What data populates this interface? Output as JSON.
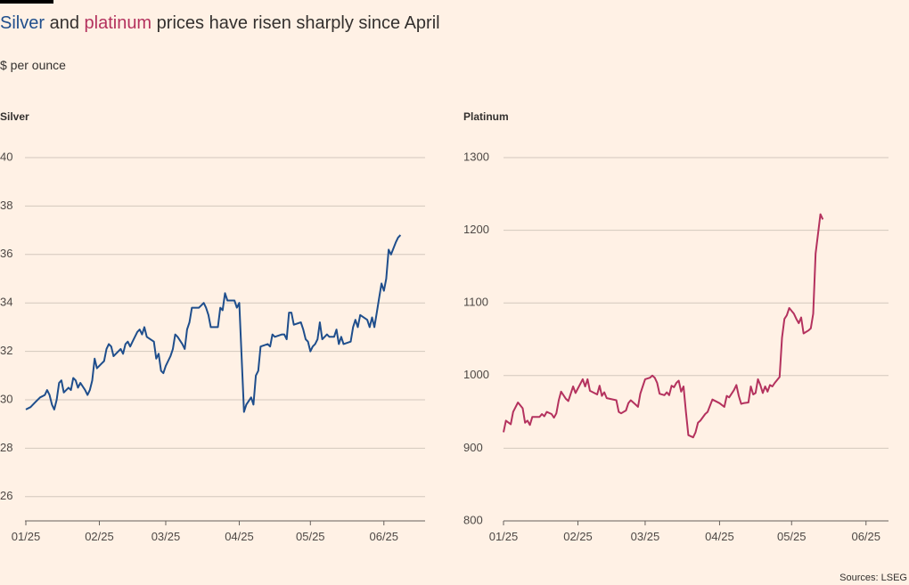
{
  "header": {
    "title_part1": "Silver",
    "title_part2": " and ",
    "title_part3": "platinum",
    "title_part4": " prices have risen sharply since April",
    "subtitle": "$ per ounce",
    "source": "Sources: LSEG"
  },
  "colors": {
    "silver": "#1f4e8c",
    "platinum": "#b4325e"
  },
  "chart_data": [
    {
      "type": "line",
      "panel_label": "Silver",
      "ylim": [
        25,
        40
      ],
      "yticks": [
        26,
        28,
        30,
        32,
        34,
        36,
        38,
        40
      ],
      "xticks": [
        {
          "label": "01/25",
          "t": 0
        },
        {
          "label": "02/25",
          "t": 31
        },
        {
          "label": "03/25",
          "t": 59
        },
        {
          "label": "04/25",
          "t": 90
        },
        {
          "label": "05/25",
          "t": 120
        },
        {
          "label": "06/25",
          "t": 151
        }
      ],
      "xmax": 168,
      "series": [
        {
          "color": "#1f4e8c",
          "points": [
            [
              0,
              29.6
            ],
            [
              2,
              29.7
            ],
            [
              4,
              29.9
            ],
            [
              6,
              30.1
            ],
            [
              8,
              30.2
            ],
            [
              9,
              30.4
            ],
            [
              10,
              30.2
            ],
            [
              11,
              29.8
            ],
            [
              12,
              29.6
            ],
            [
              13,
              30.0
            ],
            [
              14,
              30.7
            ],
            [
              15,
              30.8
            ],
            [
              16,
              30.3
            ],
            [
              18,
              30.5
            ],
            [
              19,
              30.4
            ],
            [
              20,
              30.9
            ],
            [
              21,
              30.8
            ],
            [
              22,
              30.5
            ],
            [
              23,
              30.7
            ],
            [
              25,
              30.4
            ],
            [
              26,
              30.2
            ],
            [
              27,
              30.4
            ],
            [
              28,
              30.8
            ],
            [
              29,
              31.7
            ],
            [
              30,
              31.3
            ],
            [
              32,
              31.5
            ],
            [
              33,
              31.6
            ],
            [
              34,
              32.1
            ],
            [
              35,
              32.3
            ],
            [
              36,
              32.2
            ],
            [
              37,
              31.8
            ],
            [
              39,
              32.0
            ],
            [
              40,
              32.1
            ],
            [
              41,
              31.9
            ],
            [
              42,
              32.3
            ],
            [
              43,
              32.4
            ],
            [
              44,
              32.2
            ],
            [
              45,
              32.4
            ],
            [
              47,
              32.8
            ],
            [
              48,
              32.9
            ],
            [
              49,
              32.7
            ],
            [
              50,
              33.0
            ],
            [
              51,
              32.6
            ],
            [
              54,
              32.4
            ],
            [
              55,
              31.7
            ],
            [
              56,
              31.9
            ],
            [
              57,
              31.2
            ],
            [
              58,
              31.1
            ],
            [
              59,
              31.4
            ],
            [
              61,
              31.8
            ],
            [
              62,
              32.1
            ],
            [
              63,
              32.7
            ],
            [
              64,
              32.6
            ],
            [
              66,
              32.3
            ],
            [
              67,
              32.1
            ],
            [
              68,
              32.9
            ],
            [
              69,
              33.2
            ],
            [
              70,
              33.8
            ],
            [
              73,
              33.8
            ],
            [
              74,
              33.9
            ],
            [
              75,
              34.0
            ],
            [
              76,
              33.8
            ],
            [
              77,
              33.5
            ],
            [
              78,
              33.0
            ],
            [
              81,
              33.0
            ],
            [
              82,
              33.8
            ],
            [
              83,
              33.7
            ],
            [
              84,
              34.4
            ],
            [
              85,
              34.1
            ],
            [
              88,
              34.1
            ],
            [
              89,
              33.8
            ],
            [
              90,
              34.0
            ],
            [
              92,
              29.5
            ],
            [
              93,
              29.8
            ],
            [
              95,
              30.1
            ],
            [
              96,
              29.8
            ],
            [
              97,
              31.0
            ],
            [
              98,
              31.2
            ],
            [
              99,
              32.2
            ],
            [
              102,
              32.3
            ],
            [
              103,
              32.2
            ],
            [
              104,
              32.7
            ],
            [
              105,
              32.6
            ],
            [
              108,
              32.7
            ],
            [
              109,
              32.7
            ],
            [
              110,
              32.5
            ],
            [
              111,
              33.6
            ],
            [
              112,
              33.6
            ],
            [
              113,
              33.1
            ],
            [
              116,
              33.2
            ],
            [
              117,
              32.9
            ],
            [
              118,
              32.5
            ],
            [
              119,
              32.4
            ],
            [
              120,
              32.0
            ],
            [
              121,
              32.2
            ],
            [
              122,
              32.3
            ],
            [
              123,
              32.5
            ],
            [
              124,
              33.2
            ],
            [
              125,
              32.5
            ],
            [
              126,
              32.6
            ],
            [
              127,
              32.7
            ],
            [
              128,
              32.6
            ],
            [
              130,
              32.6
            ],
            [
              131,
              32.9
            ],
            [
              132,
              32.3
            ],
            [
              133,
              32.6
            ],
            [
              134,
              32.3
            ],
            [
              137,
              32.4
            ],
            [
              138,
              33.0
            ],
            [
              139,
              33.3
            ],
            [
              140,
              33.0
            ],
            [
              141,
              33.5
            ],
            [
              144,
              33.3
            ],
            [
              145,
              33.0
            ],
            [
              146,
              33.4
            ],
            [
              147,
              33.0
            ],
            [
              148,
              33.6
            ],
            [
              149,
              34.2
            ],
            [
              150,
              34.8
            ],
            [
              151,
              34.5
            ],
            [
              152,
              35.0
            ],
            [
              153,
              36.2
            ],
            [
              154,
              36.0
            ],
            [
              156,
              36.5
            ],
            [
              157,
              36.7
            ],
            [
              158,
              36.8
            ]
          ]
        }
      ]
    },
    {
      "type": "line",
      "panel_label": "Platinum",
      "ylim": [
        800,
        1300
      ],
      "yticks": [
        800,
        900,
        1000,
        1100,
        1200,
        1300
      ],
      "xticks": [
        {
          "label": "01/25",
          "t": 0
        },
        {
          "label": "02/25",
          "t": 31
        },
        {
          "label": "03/25",
          "t": 59
        },
        {
          "label": "04/25",
          "t": 90
        },
        {
          "label": "05/25",
          "t": 120
        },
        {
          "label": "06/25",
          "t": 151
        }
      ],
      "xmax": 160,
      "series": [
        {
          "color": "#b4325e",
          "points": [
            [
              0,
              922
            ],
            [
              1,
              938
            ],
            [
              3,
              933
            ],
            [
              4,
              950
            ],
            [
              6,
              963
            ],
            [
              8,
              955
            ],
            [
              9,
              935
            ],
            [
              10,
              938
            ],
            [
              11,
              932
            ],
            [
              12,
              943
            ],
            [
              15,
              943
            ],
            [
              16,
              947
            ],
            [
              17,
              944
            ],
            [
              18,
              950
            ],
            [
              20,
              947
            ],
            [
              21,
              942
            ],
            [
              22,
              948
            ],
            [
              23,
              966
            ],
            [
              24,
              978
            ],
            [
              26,
              968
            ],
            [
              27,
              965
            ],
            [
              29,
              985
            ],
            [
              30,
              976
            ],
            [
              33,
              995
            ],
            [
              34,
              985
            ],
            [
              35,
              995
            ],
            [
              36,
              979
            ],
            [
              39,
              974
            ],
            [
              40,
              986
            ],
            [
              41,
              972
            ],
            [
              42,
              977
            ],
            [
              43,
              969
            ],
            [
              47,
              966
            ],
            [
              48,
              950
            ],
            [
              49,
              948
            ],
            [
              51,
              952
            ],
            [
              52,
              962
            ],
            [
              53,
              966
            ],
            [
              55,
              960
            ],
            [
              56,
              957
            ],
            [
              57,
              975
            ],
            [
              58,
              985
            ],
            [
              59,
              995
            ],
            [
              61,
              997
            ],
            [
              62,
              1000
            ],
            [
              63,
              997
            ],
            [
              64,
              990
            ],
            [
              65,
              975
            ],
            [
              67,
              973
            ],
            [
              68,
              977
            ],
            [
              69,
              973
            ],
            [
              70,
              986
            ],
            [
              71,
              984
            ],
            [
              72,
              990
            ],
            [
              73,
              993
            ],
            [
              74,
              978
            ],
            [
              75,
              985
            ],
            [
              76,
              950
            ],
            [
              77,
              918
            ],
            [
              79,
              915
            ],
            [
              80,
              922
            ],
            [
              81,
              935
            ],
            [
              82,
              938
            ],
            [
              84,
              947
            ],
            [
              85,
              950
            ],
            [
              87,
              967
            ],
            [
              90,
              962
            ],
            [
              92,
              957
            ],
            [
              93,
              972
            ],
            [
              94,
              970
            ],
            [
              96,
              980
            ],
            [
              97,
              987
            ],
            [
              98,
              972
            ],
            [
              99,
              961
            ],
            [
              100,
              962
            ],
            [
              102,
              963
            ],
            [
              103,
              985
            ],
            [
              104,
              974
            ],
            [
              105,
              976
            ],
            [
              106,
              995
            ],
            [
              107,
              987
            ],
            [
              108,
              976
            ],
            [
              109,
              985
            ],
            [
              110,
              978
            ],
            [
              111,
              987
            ],
            [
              112,
              985
            ],
            [
              113,
              990
            ],
            [
              115,
              998
            ],
            [
              116,
              1052
            ],
            [
              117,
              1078
            ],
            [
              118,
              1083
            ],
            [
              119,
              1093
            ],
            [
              121,
              1085
            ],
            [
              122,
              1078
            ],
            [
              123,
              1072
            ],
            [
              124,
              1080
            ],
            [
              125,
              1058
            ],
            [
              127,
              1062
            ],
            [
              128,
              1065
            ],
            [
              129,
              1085
            ],
            [
              130,
              1168
            ],
            [
              131,
              1195
            ],
            [
              132,
              1222
            ],
            [
              133,
              1215
            ]
          ]
        }
      ]
    }
  ]
}
